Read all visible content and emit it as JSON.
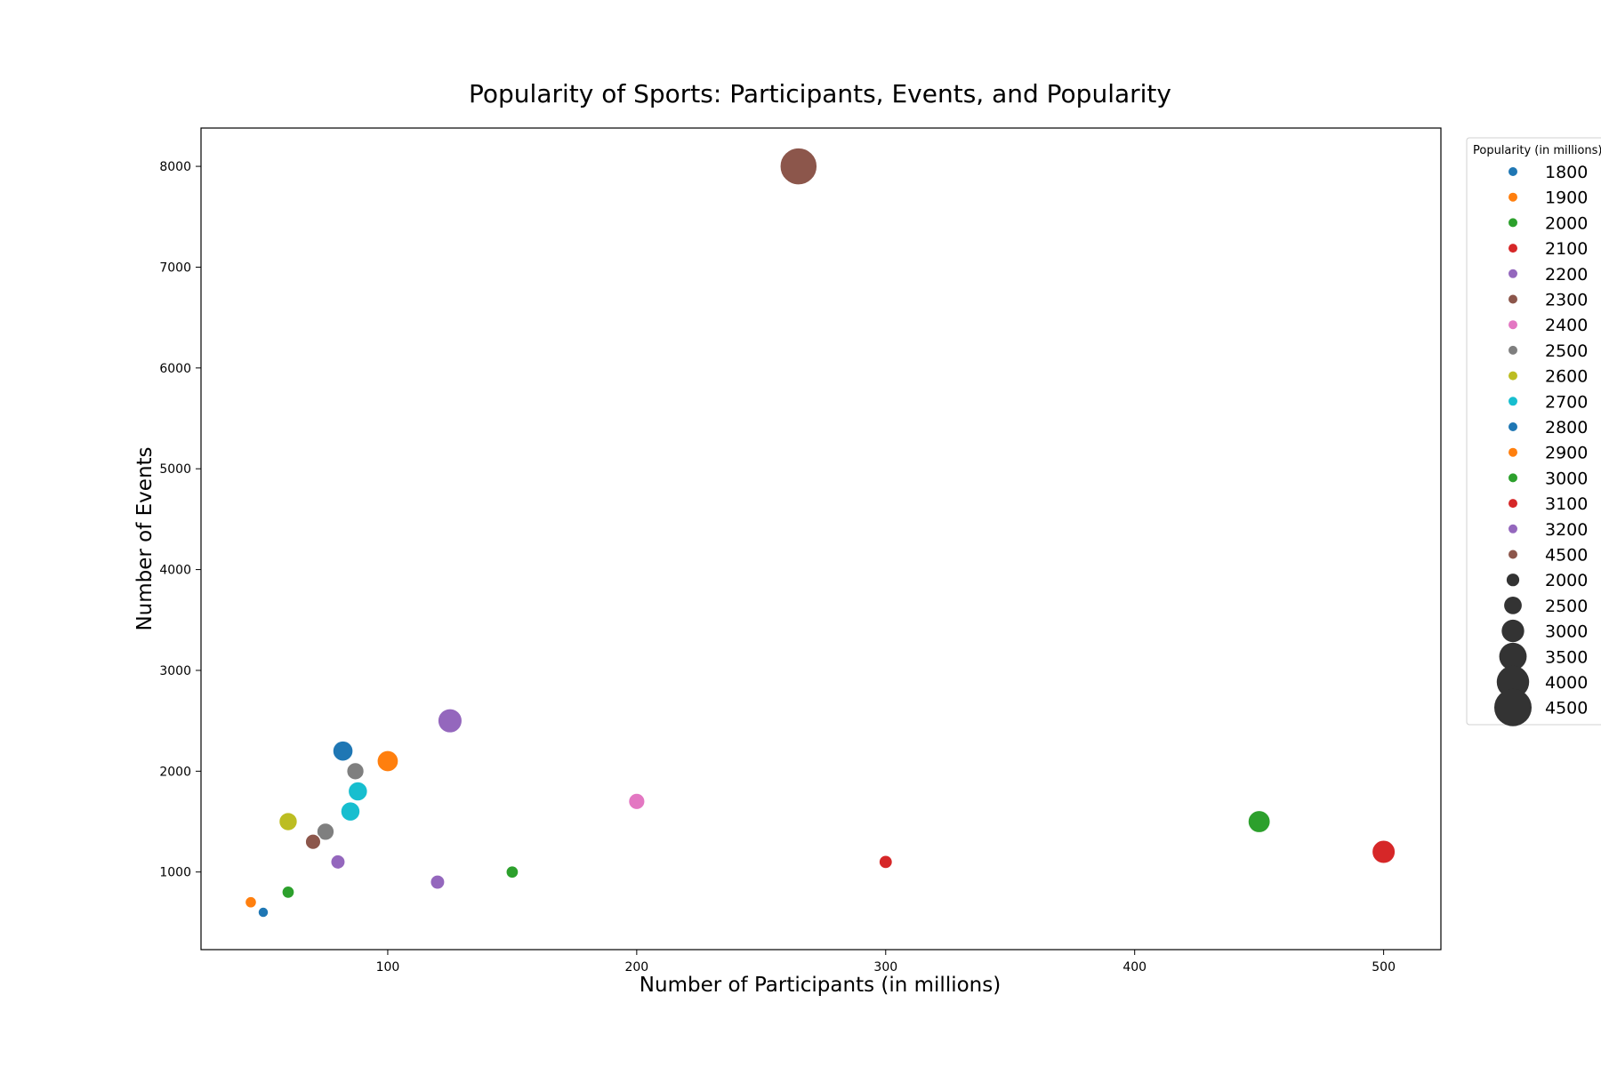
{
  "chart_data": {
    "type": "scatter",
    "title": "Popularity of Sports: Participants, Events, and Popularity",
    "xlabel": "Number of Participants (in millions)",
    "ylabel": "Number of Events",
    "xlim": [
      25,
      523
    ],
    "ylim": [
      230,
      8380
    ],
    "xticks": [
      100,
      200,
      300,
      400,
      500
    ],
    "yticks": [
      1000,
      2000,
      3000,
      4000,
      5000,
      6000,
      7000,
      8000
    ],
    "grid": false,
    "legend_position": "outside-right",
    "legend": {
      "title": "Popularity (in millions)",
      "hue_entries": [
        {
          "label": "1800",
          "color": "#1f77b4"
        },
        {
          "label": "1900",
          "color": "#ff7f0e"
        },
        {
          "label": "2000",
          "color": "#2ca02c"
        },
        {
          "label": "2100",
          "color": "#d62728"
        },
        {
          "label": "2200",
          "color": "#9467bd"
        },
        {
          "label": "2300",
          "color": "#8c564b"
        },
        {
          "label": "2400",
          "color": "#e377c2"
        },
        {
          "label": "2500",
          "color": "#7f7f7f"
        },
        {
          "label": "2600",
          "color": "#bcbd22"
        },
        {
          "label": "2700",
          "color": "#17becf"
        },
        {
          "label": "2800",
          "color": "#1f77b4"
        },
        {
          "label": "2900",
          "color": "#ff7f0e"
        },
        {
          "label": "3000",
          "color": "#2ca02c"
        },
        {
          "label": "3100",
          "color": "#d62728"
        },
        {
          "label": "3200",
          "color": "#9467bd"
        },
        {
          "label": "4500",
          "color": "#8c564b"
        }
      ],
      "size_entries": [
        "2000",
        "2500",
        "3000",
        "3500",
        "4000",
        "4500"
      ],
      "size_marker_color": "#333333"
    },
    "points": [
      {
        "x": 265,
        "y": 8000,
        "popularity": 4500,
        "color": "#8c564b"
      },
      {
        "x": 125,
        "y": 2500,
        "popularity": 3200,
        "color": "#9467bd"
      },
      {
        "x": 82,
        "y": 2200,
        "popularity": 2800,
        "color": "#1f77b4"
      },
      {
        "x": 100,
        "y": 2100,
        "popularity": 2900,
        "color": "#ff7f0e"
      },
      {
        "x": 87,
        "y": 2000,
        "popularity": 2500,
        "color": "#7f7f7f"
      },
      {
        "x": 88,
        "y": 1800,
        "popularity": 2700,
        "color": "#17becf"
      },
      {
        "x": 85,
        "y": 1600,
        "popularity": 2700,
        "color": "#17becf"
      },
      {
        "x": 60,
        "y": 1500,
        "popularity": 2600,
        "color": "#bcbd22"
      },
      {
        "x": 75,
        "y": 1400,
        "popularity": 2500,
        "color": "#7f7f7f"
      },
      {
        "x": 70,
        "y": 1300,
        "popularity": 2300,
        "color": "#8c564b"
      },
      {
        "x": 80,
        "y": 1100,
        "popularity": 2200,
        "color": "#9467bd"
      },
      {
        "x": 120,
        "y": 900,
        "popularity": 2200,
        "color": "#9467bd"
      },
      {
        "x": 150,
        "y": 1000,
        "popularity": 2000,
        "color": "#2ca02c"
      },
      {
        "x": 200,
        "y": 1700,
        "popularity": 2400,
        "color": "#e377c2"
      },
      {
        "x": 300,
        "y": 1100,
        "popularity": 2100,
        "color": "#d62728"
      },
      {
        "x": 450,
        "y": 1500,
        "popularity": 3000,
        "color": "#2ca02c"
      },
      {
        "x": 500,
        "y": 1200,
        "popularity": 3100,
        "color": "#d62728"
      },
      {
        "x": 60,
        "y": 800,
        "popularity": 2000,
        "color": "#2ca02c"
      },
      {
        "x": 45,
        "y": 700,
        "popularity": 1900,
        "color": "#ff7f0e"
      },
      {
        "x": 50,
        "y": 600,
        "popularity": 1800,
        "color": "#1f77b4"
      }
    ]
  }
}
